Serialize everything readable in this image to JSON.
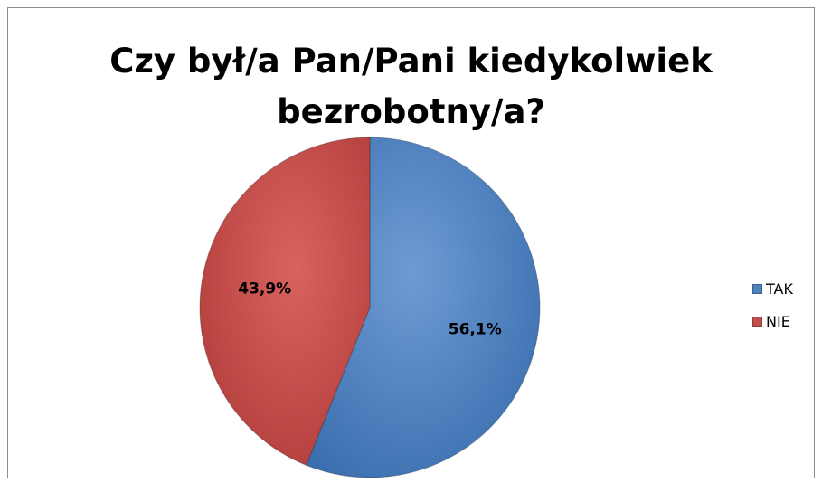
{
  "chart_data": {
    "type": "pie",
    "title": "Czy był/a Pan/Pani kiedykolwiek bezrobotny/a?",
    "title_lines": [
      "Czy był/a Pan/Pani kiedykolwiek",
      "bezrobotny/a?"
    ],
    "categories": [
      "TAK",
      "NIE"
    ],
    "values": [
      56.1,
      43.9
    ],
    "data_labels": [
      "56,1%",
      "43,9%"
    ],
    "colors": [
      "#4f81bd",
      "#c0504d"
    ],
    "legend_position": "right"
  }
}
